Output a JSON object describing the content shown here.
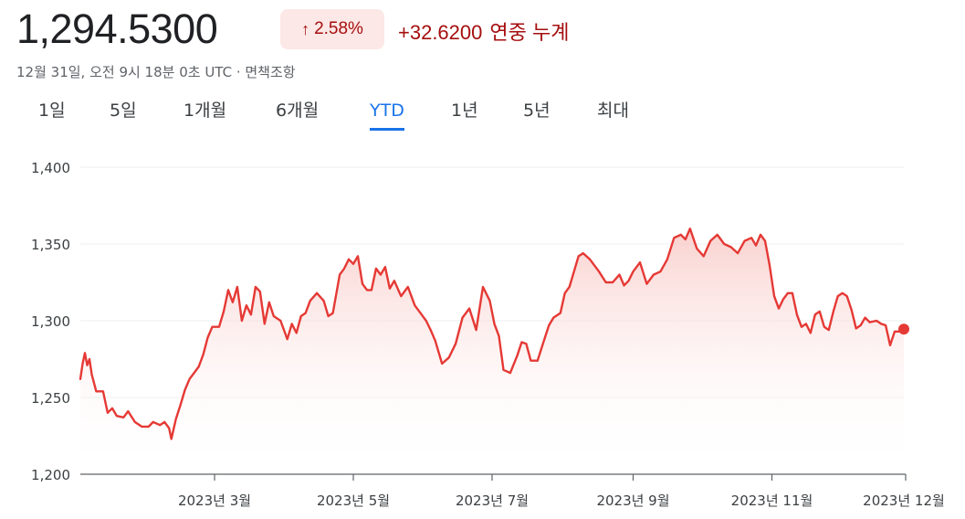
{
  "quote": {
    "price": "1,294.5300",
    "change_percent": "2.58%",
    "change_arrow_icon": "arrow-up-icon",
    "change_value": "+32.6200",
    "change_period": "연중 누계",
    "timestamp": "12월 31일, 오전 9시 18분 0초 UTC · 면책조항"
  },
  "tabs": [
    {
      "label": "1일",
      "active": false
    },
    {
      "label": "5일",
      "active": false
    },
    {
      "label": "1개월",
      "active": false
    },
    {
      "label": "6개월",
      "active": false
    },
    {
      "label": "YTD",
      "active": true
    },
    {
      "label": "1년",
      "active": false
    },
    {
      "label": "5년",
      "active": false
    },
    {
      "label": "최대",
      "active": false
    }
  ],
  "colors": {
    "line": "#e53935",
    "fill_top": "#f8c9c6",
    "accent": "#1a73e8",
    "negative": "#a50e0e"
  },
  "chart_data": {
    "type": "area",
    "title": "",
    "xlabel": "",
    "ylabel": "",
    "ylim": [
      1200,
      1400
    ],
    "yticks": [
      {
        "value": 1200,
        "label": "1,200"
      },
      {
        "value": 1250,
        "label": "1,250"
      },
      {
        "value": 1300,
        "label": "1,300"
      },
      {
        "value": 1350,
        "label": "1,350"
      },
      {
        "value": 1400,
        "label": "1,400"
      }
    ],
    "xlim": [
      "2023-01-01",
      "2023-12-29"
    ],
    "xticks": [
      {
        "date": "2023-03-01",
        "label": "2023년 3월"
      },
      {
        "date": "2023-05-01",
        "label": "2023년 5월"
      },
      {
        "date": "2023-07-01",
        "label": "2023년 7월"
      },
      {
        "date": "2023-09-01",
        "label": "2023년 9월"
      },
      {
        "date": "2023-11-01",
        "label": "2023년 11월"
      },
      {
        "date": "2023-12-31",
        "label": "2023년 12월"
      }
    ],
    "grid": true,
    "series": [
      {
        "points": [
          [
            "2023-01-01",
            1262
          ],
          [
            "2023-01-02",
            1272
          ],
          [
            "2023-01-03",
            1279
          ],
          [
            "2023-01-04",
            1271
          ],
          [
            "2023-01-05",
            1275
          ],
          [
            "2023-01-06",
            1265
          ],
          [
            "2023-01-08",
            1254
          ],
          [
            "2023-01-11",
            1254
          ],
          [
            "2023-01-13",
            1240
          ],
          [
            "2023-01-15",
            1243
          ],
          [
            "2023-01-17",
            1238
          ],
          [
            "2023-01-20",
            1237
          ],
          [
            "2023-01-22",
            1241
          ],
          [
            "2023-01-25",
            1234
          ],
          [
            "2023-01-28",
            1231
          ],
          [
            "2023-01-31",
            1231
          ],
          [
            "2023-02-02",
            1234
          ],
          [
            "2023-02-05",
            1232
          ],
          [
            "2023-02-07",
            1234
          ],
          [
            "2023-02-09",
            1230
          ],
          [
            "2023-02-10",
            1223
          ],
          [
            "2023-02-12",
            1236
          ],
          [
            "2023-02-14",
            1245
          ],
          [
            "2023-02-16",
            1255
          ],
          [
            "2023-02-18",
            1262
          ],
          [
            "2023-02-20",
            1266
          ],
          [
            "2023-02-22",
            1270
          ],
          [
            "2023-02-24",
            1278
          ],
          [
            "2023-02-26",
            1289
          ],
          [
            "2023-02-28",
            1296
          ],
          [
            "2023-03-03",
            1296
          ],
          [
            "2023-03-05",
            1306
          ],
          [
            "2023-03-07",
            1320
          ],
          [
            "2023-03-09",
            1312
          ],
          [
            "2023-03-11",
            1322
          ],
          [
            "2023-03-13",
            1300
          ],
          [
            "2023-03-15",
            1310
          ],
          [
            "2023-03-17",
            1304
          ],
          [
            "2023-03-19",
            1322
          ],
          [
            "2023-03-21",
            1319
          ],
          [
            "2023-03-23",
            1298
          ],
          [
            "2023-03-25",
            1312
          ],
          [
            "2023-03-27",
            1303
          ],
          [
            "2023-03-30",
            1300
          ],
          [
            "2023-04-02",
            1288
          ],
          [
            "2023-04-04",
            1298
          ],
          [
            "2023-04-06",
            1292
          ],
          [
            "2023-04-08",
            1303
          ],
          [
            "2023-04-10",
            1305
          ],
          [
            "2023-04-12",
            1313
          ],
          [
            "2023-04-15",
            1318
          ],
          [
            "2023-04-18",
            1313
          ],
          [
            "2023-04-20",
            1303
          ],
          [
            "2023-04-22",
            1305
          ],
          [
            "2023-04-25",
            1330
          ],
          [
            "2023-04-27",
            1334
          ],
          [
            "2023-04-29",
            1340
          ],
          [
            "2023-05-01",
            1337
          ],
          [
            "2023-05-03",
            1342
          ],
          [
            "2023-05-05",
            1324
          ],
          [
            "2023-05-07",
            1320
          ],
          [
            "2023-05-09",
            1320
          ],
          [
            "2023-05-11",
            1334
          ],
          [
            "2023-05-13",
            1330
          ],
          [
            "2023-05-15",
            1335
          ],
          [
            "2023-05-17",
            1321
          ],
          [
            "2023-05-19",
            1326
          ],
          [
            "2023-05-22",
            1316
          ],
          [
            "2023-05-25",
            1322
          ],
          [
            "2023-05-28",
            1310
          ],
          [
            "2023-05-31",
            1304
          ],
          [
            "2023-06-02",
            1300
          ],
          [
            "2023-06-04",
            1294
          ],
          [
            "2023-06-06",
            1287
          ],
          [
            "2023-06-09",
            1272
          ],
          [
            "2023-06-12",
            1276
          ],
          [
            "2023-06-15",
            1285
          ],
          [
            "2023-06-18",
            1302
          ],
          [
            "2023-06-21",
            1308
          ],
          [
            "2023-06-24",
            1294
          ],
          [
            "2023-06-27",
            1322
          ],
          [
            "2023-06-30",
            1313
          ],
          [
            "2023-07-02",
            1298
          ],
          [
            "2023-07-04",
            1290
          ],
          [
            "2023-07-06",
            1268
          ],
          [
            "2023-07-09",
            1266
          ],
          [
            "2023-07-12",
            1277
          ],
          [
            "2023-07-14",
            1286
          ],
          [
            "2023-07-16",
            1285
          ],
          [
            "2023-07-18",
            1274
          ],
          [
            "2023-07-21",
            1274
          ],
          [
            "2023-07-24",
            1288
          ],
          [
            "2023-07-26",
            1297
          ],
          [
            "2023-07-28",
            1302
          ],
          [
            "2023-07-31",
            1305
          ],
          [
            "2023-08-02",
            1318
          ],
          [
            "2023-08-04",
            1322
          ],
          [
            "2023-08-06",
            1332
          ],
          [
            "2023-08-08",
            1342
          ],
          [
            "2023-08-10",
            1344
          ],
          [
            "2023-08-13",
            1340
          ],
          [
            "2023-08-17",
            1332
          ],
          [
            "2023-08-20",
            1325
          ],
          [
            "2023-08-23",
            1325
          ],
          [
            "2023-08-26",
            1330
          ],
          [
            "2023-08-28",
            1323
          ],
          [
            "2023-08-30",
            1326
          ],
          [
            "2023-09-01",
            1332
          ],
          [
            "2023-09-04",
            1338
          ],
          [
            "2023-09-07",
            1324
          ],
          [
            "2023-09-10",
            1330
          ],
          [
            "2023-09-13",
            1332
          ],
          [
            "2023-09-16",
            1340
          ],
          [
            "2023-09-19",
            1354
          ],
          [
            "2023-09-22",
            1356
          ],
          [
            "2023-09-24",
            1353
          ],
          [
            "2023-09-26",
            1360
          ],
          [
            "2023-09-29",
            1347
          ],
          [
            "2023-10-02",
            1342
          ],
          [
            "2023-10-05",
            1352
          ],
          [
            "2023-10-08",
            1356
          ],
          [
            "2023-10-11",
            1350
          ],
          [
            "2023-10-14",
            1348
          ],
          [
            "2023-10-17",
            1344
          ],
          [
            "2023-10-20",
            1352
          ],
          [
            "2023-10-23",
            1354
          ],
          [
            "2023-10-25",
            1349
          ],
          [
            "2023-10-27",
            1356
          ],
          [
            "2023-10-29",
            1352
          ],
          [
            "2023-10-31",
            1336
          ],
          [
            "2023-11-02",
            1316
          ],
          [
            "2023-11-04",
            1308
          ],
          [
            "2023-11-06",
            1314
          ],
          [
            "2023-11-08",
            1318
          ],
          [
            "2023-11-10",
            1318
          ],
          [
            "2023-11-12",
            1304
          ],
          [
            "2023-11-14",
            1296
          ],
          [
            "2023-11-16",
            1298
          ],
          [
            "2023-11-18",
            1292
          ],
          [
            "2023-11-20",
            1304
          ],
          [
            "2023-11-22",
            1306
          ],
          [
            "2023-11-24",
            1296
          ],
          [
            "2023-11-26",
            1294
          ],
          [
            "2023-11-28",
            1306
          ],
          [
            "2023-11-30",
            1316
          ],
          [
            "2023-12-02",
            1318
          ],
          [
            "2023-12-04",
            1316
          ],
          [
            "2023-12-06",
            1307
          ],
          [
            "2023-12-08",
            1295
          ],
          [
            "2023-12-10",
            1297
          ],
          [
            "2023-12-12",
            1302
          ],
          [
            "2023-12-14",
            1299
          ],
          [
            "2023-12-17",
            1300
          ],
          [
            "2023-12-19",
            1298
          ],
          [
            "2023-12-21",
            1297
          ],
          [
            "2023-12-23",
            1284
          ],
          [
            "2023-12-25",
            1293
          ],
          [
            "2023-12-27",
            1293
          ],
          [
            "2023-12-29",
            1294.53
          ]
        ]
      }
    ],
    "last_point_marker": true
  }
}
